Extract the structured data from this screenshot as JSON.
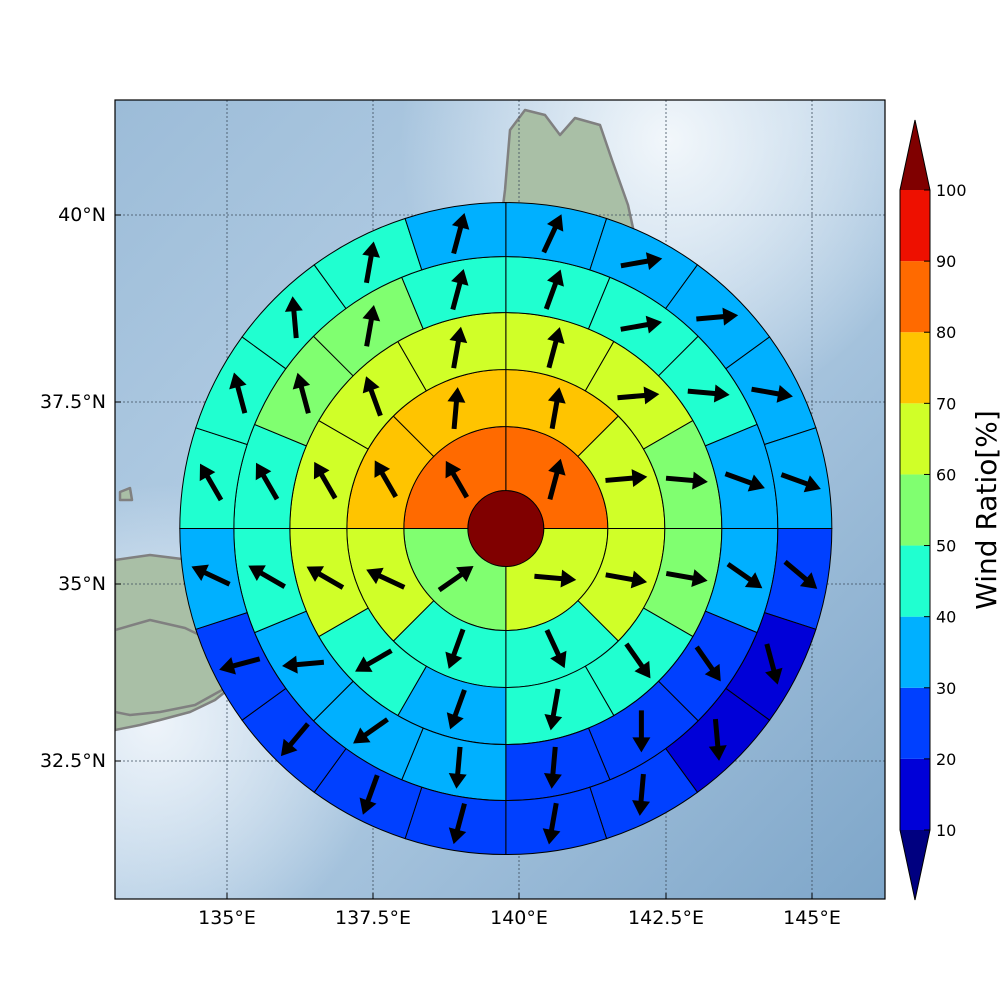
{
  "chart_data": {
    "type": "heatmap",
    "title": "",
    "xlabel": "",
    "ylabel": "",
    "xlim": [
      133.0,
      146.2
    ],
    "ylim": [
      30.6,
      41.6
    ],
    "grid": true,
    "center": [
      139.7,
      35.7
    ],
    "x_ticks": [
      {
        "value": 135.0,
        "label": "135°E"
      },
      {
        "value": 137.5,
        "label": "137.5°E"
      },
      {
        "value": 140.0,
        "label": "140°E"
      },
      {
        "value": 142.5,
        "label": "142.5°E"
      },
      {
        "value": 145.0,
        "label": "145°E"
      }
    ],
    "y_ticks": [
      {
        "value": 40.0,
        "label": "40°N"
      },
      {
        "value": 37.5,
        "label": "37.5°N"
      },
      {
        "value": 35.0,
        "label": "35°N"
      },
      {
        "value": 32.5,
        "label": "32.5°N"
      }
    ],
    "center_ratio": 100,
    "ring_sector_counts": [
      4,
      8,
      12,
      16,
      20
    ],
    "sector_start": "north, clockwise",
    "rings": [
      {
        "ratios": [
          80,
          60,
          55,
          80
        ],
        "dirs": [
          15,
          95,
          55,
          330
        ]
      },
      {
        "ratios": [
          75,
          60,
          65,
          45,
          45,
          65,
          75,
          75
        ],
        "dirs": [
          10,
          85,
          100,
          155,
          200,
          295,
          330,
          5
        ]
      },
      {
        "ratios": [
          65,
          65,
          55,
          55,
          45,
          40,
          35,
          45,
          60,
          65,
          65,
          65
        ],
        "dirs": [
          15,
          85,
          95,
          100,
          145,
          190,
          200,
          240,
          300,
          330,
          340,
          10
        ]
      },
      {
        "ratios": [
          45,
          45,
          45,
          35,
          35,
          25,
          25,
          25,
          35,
          35,
          35,
          45,
          45,
          55,
          55,
          45
        ],
        "dirs": [
          20,
          80,
          95,
          110,
          125,
          145,
          180,
          185,
          185,
          235,
          265,
          300,
          330,
          345,
          10,
          15
        ],
        "note": "each ring lists its sectors clockwise from north"
      },
      {
        "ratios": [
          35,
          35,
          35,
          35,
          35,
          25,
          15,
          15,
          25,
          25,
          25,
          25,
          25,
          25,
          35,
          45,
          45,
          45,
          45,
          35
        ],
        "dirs": [
          25,
          80,
          85,
          100,
          110,
          130,
          165,
          175,
          185,
          190,
          195,
          200,
          220,
          255,
          295,
          330,
          345,
          355,
          10,
          15
        ]
      }
    ],
    "colorbar": {
      "label": "Wind Ratio[%]",
      "ticks": [
        "10",
        "20",
        "30",
        "40",
        "50",
        "60",
        "70",
        "80",
        "90",
        "100"
      ],
      "levels": [
        10,
        20,
        30,
        40,
        50,
        60,
        70,
        80,
        90,
        100
      ],
      "colors": [
        "#0000d8",
        "#0040ff",
        "#00b0ff",
        "#20ffd0",
        "#80ff70",
        "#d0ff28",
        "#ffc400",
        "#ff6a00",
        "#ee1000"
      ],
      "under_color": "#000080",
      "over_color": "#800000",
      "extend": "both"
    }
  }
}
